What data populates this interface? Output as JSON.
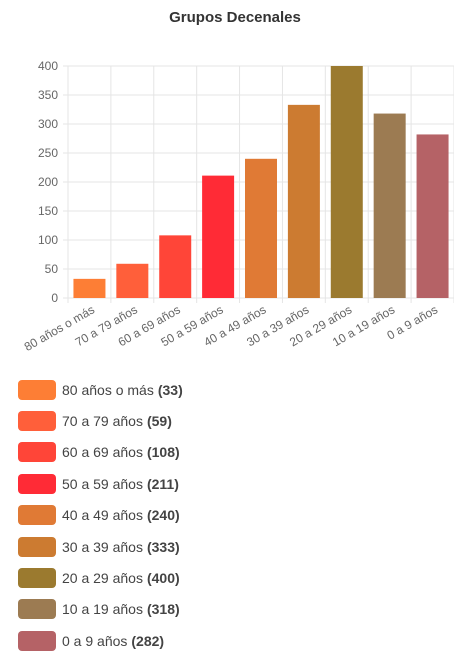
{
  "chart_data": {
    "type": "bar",
    "title": "Grupos Decenales",
    "categories": [
      "80 años o más",
      "70 a 79 años",
      "60 a 69 años",
      "50 a 59 años",
      "40 a 49 años",
      "30 a 39 años",
      "20 a 29 años",
      "10 a 19 años",
      "0 a 9 años"
    ],
    "values": [
      33,
      59,
      108,
      211,
      240,
      333,
      400,
      318,
      282
    ],
    "value_labels": [
      "(33)",
      "(59)",
      "(108)",
      "(211)",
      "(240)",
      "(333)",
      "(400)",
      "(318)",
      "(282)"
    ],
    "colors": [
      "#fd7e35",
      "#ff5f3a",
      "#ff4538",
      "#ff2b36",
      "#e07a35",
      "#cc7b31",
      "#9b7a2f",
      "#9c7b52",
      "#b56266"
    ],
    "ylim": [
      0,
      400
    ],
    "yticks": [
      0,
      50,
      100,
      150,
      200,
      250,
      300,
      350,
      400
    ],
    "grid": true
  }
}
